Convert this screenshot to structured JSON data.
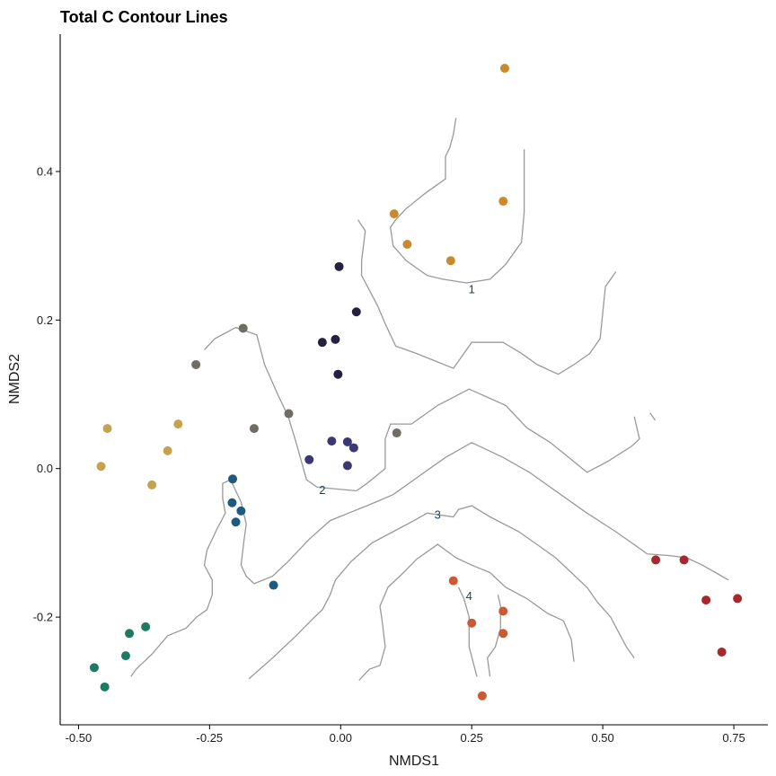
{
  "chart_data": {
    "type": "scatter",
    "title": "Total C Contour Lines",
    "xlabel": "NMDS1",
    "ylabel": "NMDS2",
    "xlim": [
      -0.535,
      0.815
    ],
    "ylim": [
      -0.345,
      0.585
    ],
    "xticks": [
      -0.5,
      -0.25,
      0,
      0.25,
      0.5,
      0.75
    ],
    "xtick_labels": [
      "-0.50",
      "-0.25",
      "0.00",
      "0.25",
      "0.50",
      "0.75"
    ],
    "yticks": [
      -0.2,
      0,
      0.2,
      0.4
    ],
    "ytick_labels": [
      "-0.2",
      "0.0",
      "0.2",
      "0.4"
    ],
    "grid": false,
    "legend": "none",
    "colors": {
      "contour_line": "#999999",
      "contour_label": "#1f3d5a",
      "axis": "#000000"
    },
    "points": [
      {
        "x": 0.313,
        "y": 0.539,
        "color": "#C98A2E"
      },
      {
        "x": 0.31,
        "y": 0.36,
        "color": "#C98A2E"
      },
      {
        "x": 0.102,
        "y": 0.343,
        "color": "#C98A2E"
      },
      {
        "x": 0.127,
        "y": 0.302,
        "color": "#C98A2E"
      },
      {
        "x": 0.21,
        "y": 0.28,
        "color": "#C98A2E"
      },
      {
        "x": -0.003,
        "y": 0.272,
        "color": "#23213F"
      },
      {
        "x": 0.03,
        "y": 0.211,
        "color": "#23213F"
      },
      {
        "x": -0.01,
        "y": 0.174,
        "color": "#23213F"
      },
      {
        "x": -0.035,
        "y": 0.17,
        "color": "#23213F"
      },
      {
        "x": -0.005,
        "y": 0.127,
        "color": "#23213F"
      },
      {
        "x": -0.186,
        "y": 0.189,
        "color": "#6E6C64"
      },
      {
        "x": -0.276,
        "y": 0.14,
        "color": "#6E6C64"
      },
      {
        "x": -0.099,
        "y": 0.074,
        "color": "#6E6C64"
      },
      {
        "x": -0.165,
        "y": 0.054,
        "color": "#6E6C64"
      },
      {
        "x": 0.107,
        "y": 0.048,
        "color": "#6E6C64"
      },
      {
        "x": -0.445,
        "y": 0.054,
        "color": "#C4A24E"
      },
      {
        "x": -0.31,
        "y": 0.06,
        "color": "#C4A24E"
      },
      {
        "x": -0.33,
        "y": 0.024,
        "color": "#C4A24E"
      },
      {
        "x": -0.457,
        "y": 0.003,
        "color": "#C4A24E"
      },
      {
        "x": -0.36,
        "y": -0.022,
        "color": "#C4A24E"
      },
      {
        "x": -0.017,
        "y": 0.037,
        "color": "#3B3876"
      },
      {
        "x": 0.013,
        "y": 0.036,
        "color": "#3B3876"
      },
      {
        "x": 0.025,
        "y": 0.028,
        "color": "#3B3876"
      },
      {
        "x": -0.06,
        "y": 0.012,
        "color": "#3B3876"
      },
      {
        "x": 0.013,
        "y": 0.004,
        "color": "#3B3876"
      },
      {
        "x": -0.206,
        "y": -0.014,
        "color": "#1E5A80"
      },
      {
        "x": -0.207,
        "y": -0.046,
        "color": "#1E5A80"
      },
      {
        "x": -0.19,
        "y": -0.057,
        "color": "#1E5A80"
      },
      {
        "x": -0.2,
        "y": -0.072,
        "color": "#1E5A80"
      },
      {
        "x": -0.128,
        "y": -0.157,
        "color": "#1E5A80"
      },
      {
        "x": -0.372,
        "y": -0.213,
        "color": "#1F7A62"
      },
      {
        "x": -0.403,
        "y": -0.222,
        "color": "#1F7A62"
      },
      {
        "x": -0.41,
        "y": -0.252,
        "color": "#1F7A62"
      },
      {
        "x": -0.47,
        "y": -0.268,
        "color": "#1F7A62"
      },
      {
        "x": -0.45,
        "y": -0.294,
        "color": "#1F7A62"
      },
      {
        "x": 0.215,
        "y": -0.151,
        "color": "#C95A33"
      },
      {
        "x": 0.31,
        "y": -0.192,
        "color": "#C95A33"
      },
      {
        "x": 0.25,
        "y": -0.208,
        "color": "#C95A33"
      },
      {
        "x": 0.31,
        "y": -0.222,
        "color": "#C95A33"
      },
      {
        "x": 0.27,
        "y": -0.306,
        "color": "#C95A33"
      },
      {
        "x": 0.601,
        "y": -0.123,
        "color": "#A8282E"
      },
      {
        "x": 0.655,
        "y": -0.123,
        "color": "#A8282E"
      },
      {
        "x": 0.697,
        "y": -0.177,
        "color": "#A8282E"
      },
      {
        "x": 0.757,
        "y": -0.175,
        "color": "#A8282E"
      },
      {
        "x": 0.727,
        "y": -0.247,
        "color": "#A8282E"
      }
    ],
    "contours": [
      {
        "label": "1",
        "label_at": {
          "x": 0.25,
          "y": 0.24
        },
        "lines": [
          [
            [
              0.22,
              0.472
            ],
            [
              0.215,
              0.45
            ],
            [
              0.208,
              0.432
            ],
            [
              0.2,
              0.42
            ],
            [
              0.2,
              0.39
            ],
            [
              0.16,
              0.37
            ],
            [
              0.125,
              0.35
            ],
            [
              0.105,
              0.335
            ],
            [
              0.095,
              0.325
            ],
            [
              0.1,
              0.3
            ],
            [
              0.125,
              0.28
            ],
            [
              0.145,
              0.27
            ],
            [
              0.165,
              0.26
            ],
            [
              0.195,
              0.255
            ],
            [
              0.24,
              0.25
            ],
            [
              0.285,
              0.255
            ],
            [
              0.315,
              0.275
            ],
            [
              0.345,
              0.305
            ],
            [
              0.35,
              0.345
            ],
            [
              0.35,
              0.43
            ]
          ]
        ]
      },
      {
        "label": "",
        "label_at": {
          "x": 0,
          "y": 0
        },
        "lines": [
          [
            [
              0.033,
              0.335
            ],
            [
              0.047,
              0.32
            ],
            [
              0.04,
              0.28
            ],
            [
              0.04,
              0.26
            ],
            [
              0.07,
              0.22
            ],
            [
              0.085,
              0.195
            ],
            [
              0.105,
              0.165
            ],
            [
              0.145,
              0.155
            ],
            [
              0.215,
              0.135
            ],
            [
              0.25,
              0.17
            ],
            [
              0.31,
              0.17
            ],
            [
              0.345,
              0.155
            ],
            [
              0.375,
              0.14
            ],
            [
              0.415,
              0.127
            ],
            [
              0.445,
              0.14
            ],
            [
              0.475,
              0.155
            ],
            [
              0.495,
              0.175
            ],
            [
              0.5,
              0.21
            ],
            [
              0.505,
              0.245
            ],
            [
              0.525,
              0.265
            ]
          ]
        ]
      },
      {
        "label": "2",
        "label_at": {
          "x": -0.035,
          "y": -0.03
        },
        "lines": [
          [
            [
              -0.26,
              0.16
            ],
            [
              -0.24,
              0.175
            ],
            [
              -0.2,
              0.19
            ],
            [
              -0.16,
              0.18
            ],
            [
              -0.145,
              0.14
            ],
            [
              -0.12,
              0.1
            ],
            [
              -0.1,
              0.07
            ],
            [
              -0.085,
              0.035
            ],
            [
              -0.075,
              0.01
            ],
            [
              -0.065,
              -0.015
            ],
            [
              -0.045,
              -0.025
            ],
            [
              0.03,
              -0.03
            ],
            [
              0.05,
              -0.02
            ],
            [
              0.085,
              0.0
            ],
            [
              0.085,
              0.04
            ],
            [
              0.095,
              0.06
            ],
            [
              0.135,
              0.06
            ],
            [
              0.185,
              0.085
            ],
            [
              0.245,
              0.107
            ],
            [
              0.315,
              0.085
            ],
            [
              0.355,
              0.055
            ],
            [
              0.4,
              0.035
            ],
            [
              0.435,
              0.015
            ],
            [
              0.47,
              -0.005
            ],
            [
              0.51,
              0.01
            ],
            [
              0.555,
              0.03
            ],
            [
              0.57,
              0.04
            ],
            [
              0.565,
              0.055
            ],
            [
              0.56,
              0.07
            ]
          ],
          [
            [
              0.59,
              0.075
            ],
            [
              0.595,
              0.07
            ],
            [
              0.6,
              0.065
            ]
          ]
        ]
      },
      {
        "label": "3",
        "label_at": {
          "x": 0.185,
          "y": -0.063
        },
        "lines": [
          [
            [
              -0.4,
              -0.28
            ],
            [
              -0.39,
              -0.27
            ],
            [
              -0.375,
              -0.26
            ],
            [
              -0.36,
              -0.25
            ],
            [
              -0.33,
              -0.225
            ],
            [
              -0.295,
              -0.215
            ],
            [
              -0.275,
              -0.2
            ],
            [
              -0.255,
              -0.19
            ],
            [
              -0.245,
              -0.17
            ],
            [
              -0.245,
              -0.15
            ],
            [
              -0.26,
              -0.13
            ],
            [
              -0.255,
              -0.11
            ],
            [
              -0.235,
              -0.08
            ],
            [
              -0.22,
              -0.06
            ],
            [
              -0.225,
              -0.04
            ],
            [
              -0.225,
              -0.02
            ],
            [
              -0.21,
              -0.015
            ],
            [
              -0.2,
              -0.03
            ],
            [
              -0.19,
              -0.045
            ],
            [
              -0.18,
              -0.075
            ],
            [
              -0.185,
              -0.1
            ],
            [
              -0.19,
              -0.13
            ],
            [
              -0.18,
              -0.145
            ],
            [
              -0.165,
              -0.155
            ],
            [
              -0.13,
              -0.145
            ],
            [
              -0.1,
              -0.125
            ],
            [
              -0.06,
              -0.095
            ],
            [
              -0.02,
              -0.07
            ],
            [
              0.015,
              -0.06
            ],
            [
              0.05,
              -0.05
            ],
            [
              0.1,
              -0.035
            ],
            [
              0.15,
              -0.01
            ],
            [
              0.2,
              0.015
            ],
            [
              0.25,
              0.035
            ],
            [
              0.31,
              0.015
            ],
            [
              0.36,
              -0.005
            ],
            [
              0.42,
              -0.035
            ],
            [
              0.47,
              -0.06
            ],
            [
              0.525,
              -0.085
            ],
            [
              0.565,
              -0.105
            ],
            [
              0.585,
              -0.115
            ],
            [
              0.625,
              -0.117
            ],
            [
              0.66,
              -0.12
            ],
            [
              0.69,
              -0.13
            ],
            [
              0.715,
              -0.14
            ],
            [
              0.74,
              -0.15
            ]
          ]
        ]
      },
      {
        "label": "",
        "label_at": {
          "x": 0,
          "y": 0
        },
        "lines": [
          [
            [
              -0.175,
              -0.283
            ],
            [
              -0.13,
              -0.255
            ],
            [
              -0.085,
              -0.225
            ],
            [
              -0.05,
              -0.2
            ],
            [
              -0.035,
              -0.19
            ],
            [
              -0.02,
              -0.17
            ],
            [
              -0.01,
              -0.15
            ],
            [
              0.02,
              -0.125
            ],
            [
              0.06,
              -0.1
            ],
            [
              0.1,
              -0.085
            ],
            [
              0.14,
              -0.07
            ],
            [
              0.165,
              -0.06
            ],
            [
              0.215,
              -0.065
            ],
            [
              0.225,
              -0.055
            ],
            [
              0.25,
              -0.05
            ],
            [
              0.285,
              -0.065
            ],
            [
              0.34,
              -0.085
            ],
            [
              0.37,
              -0.1
            ],
            [
              0.41,
              -0.12
            ],
            [
              0.44,
              -0.14
            ],
            [
              0.47,
              -0.16
            ],
            [
              0.49,
              -0.18
            ],
            [
              0.515,
              -0.2
            ],
            [
              0.53,
              -0.22
            ],
            [
              0.545,
              -0.24
            ],
            [
              0.56,
              -0.255
            ]
          ]
        ]
      },
      {
        "label": "4",
        "label_at": {
          "x": 0.245,
          "y": -0.173
        },
        "lines": [
          [
            [
              0.035,
              -0.285
            ],
            [
              0.055,
              -0.27
            ],
            [
              0.075,
              -0.265
            ],
            [
              0.085,
              -0.24
            ],
            [
              0.08,
              -0.21
            ],
            [
              0.075,
              -0.185
            ],
            [
              0.09,
              -0.16
            ],
            [
              0.12,
              -0.14
            ],
            [
              0.145,
              -0.122
            ],
            [
              0.185,
              -0.102
            ],
            [
              0.22,
              -0.12
            ],
            [
              0.25,
              -0.13
            ],
            [
              0.285,
              -0.14
            ],
            [
              0.315,
              -0.16
            ],
            [
              0.355,
              -0.175
            ],
            [
              0.395,
              -0.195
            ],
            [
              0.425,
              -0.205
            ],
            [
              0.44,
              -0.23
            ],
            [
              0.445,
              -0.26
            ]
          ],
          [
            [
              0.225,
              -0.16
            ],
            [
              0.235,
              -0.175
            ],
            [
              0.245,
              -0.2
            ],
            [
              0.245,
              -0.24
            ],
            [
              0.26,
              -0.28
            ]
          ],
          [
            [
              0.285,
              -0.28
            ],
            [
              0.28,
              -0.255
            ],
            [
              0.295,
              -0.24
            ],
            [
              0.305,
              -0.215
            ],
            [
              0.305,
              -0.185
            ],
            [
              0.3,
              -0.17
            ]
          ]
        ]
      }
    ]
  }
}
